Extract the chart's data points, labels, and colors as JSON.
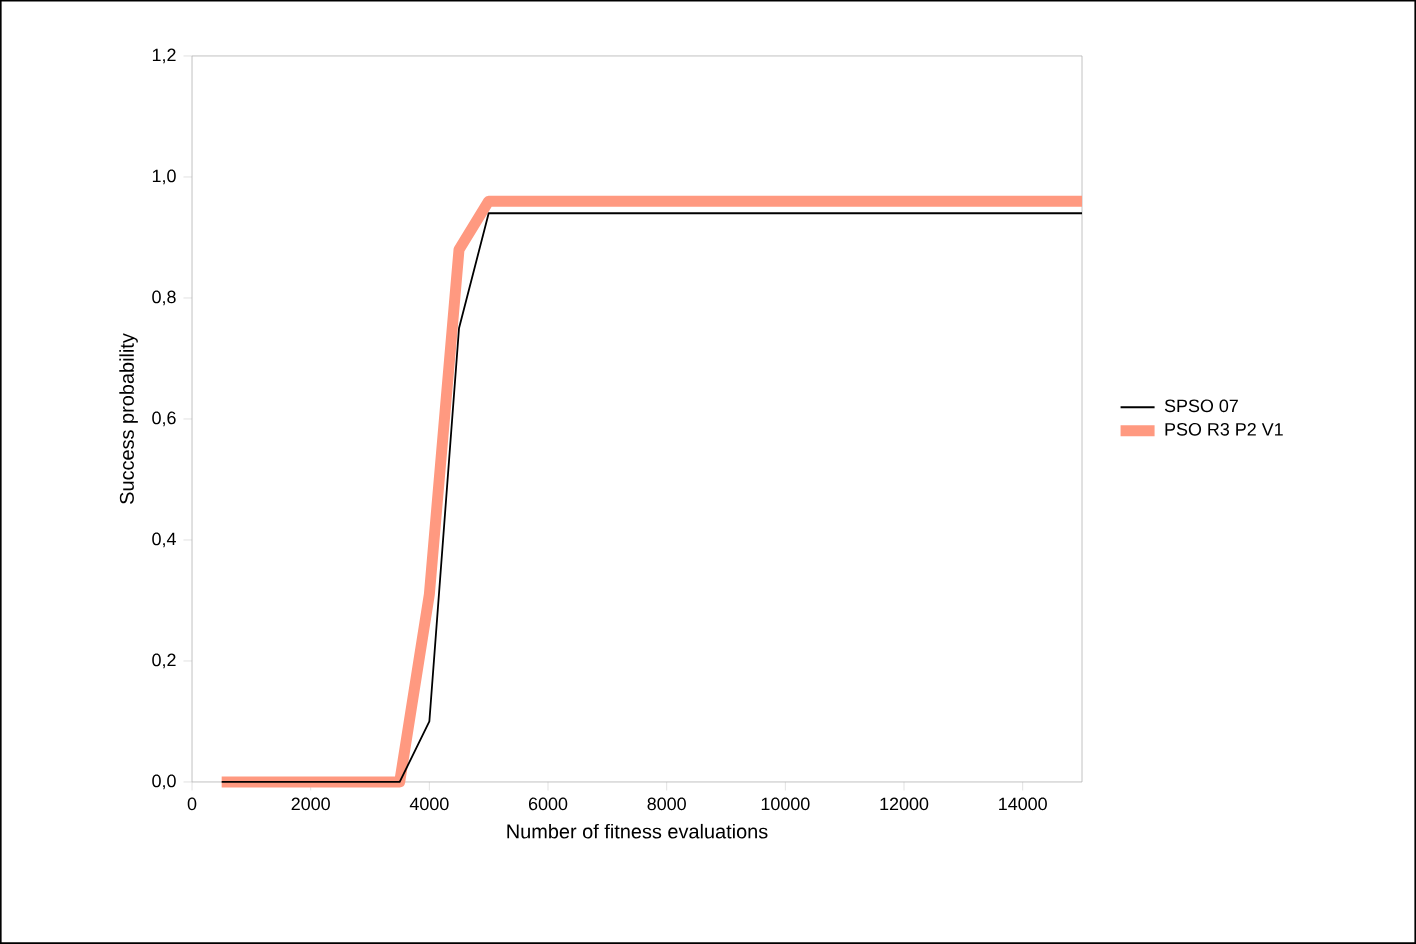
{
  "chart_data": {
    "type": "line",
    "xlabel": "Number of fitness evaluations",
    "ylabel": "Success probability",
    "xlim": [
      0,
      15000
    ],
    "ylim": [
      0,
      1.2
    ],
    "xticks": [
      0,
      2000,
      4000,
      6000,
      8000,
      10000,
      12000,
      14000
    ],
    "yticks": [
      {
        "value": 0,
        "label": "0,0"
      },
      {
        "value": 0.2,
        "label": "0,2"
      },
      {
        "value": 0.4,
        "label": "0,4"
      },
      {
        "value": 0.6,
        "label": "0,6"
      },
      {
        "value": 0.8,
        "label": "0,8"
      },
      {
        "value": 1.0,
        "label": "1,0"
      },
      {
        "value": 1.2,
        "label": "1,2"
      }
    ],
    "series": [
      {
        "name": "SPSO 07",
        "color": "#000000",
        "x": [
          500,
          1000,
          1500,
          2000,
          2500,
          3000,
          3500,
          4000,
          4500,
          5000,
          15000
        ],
        "values": [
          0,
          0,
          0,
          0,
          0,
          0,
          0,
          0.1,
          0.75,
          0.94,
          0.94
        ]
      },
      {
        "name": "PSO R3 P2 V1",
        "color": "#ff9980",
        "x": [
          500,
          1000,
          1500,
          2000,
          2500,
          3000,
          3500,
          4000,
          4500,
          5000,
          15000
        ],
        "values": [
          0,
          0,
          0,
          0,
          0,
          0,
          0,
          0.31,
          0.88,
          0.96,
          0.96
        ]
      }
    ],
    "legend": "right",
    "grid": false
  }
}
